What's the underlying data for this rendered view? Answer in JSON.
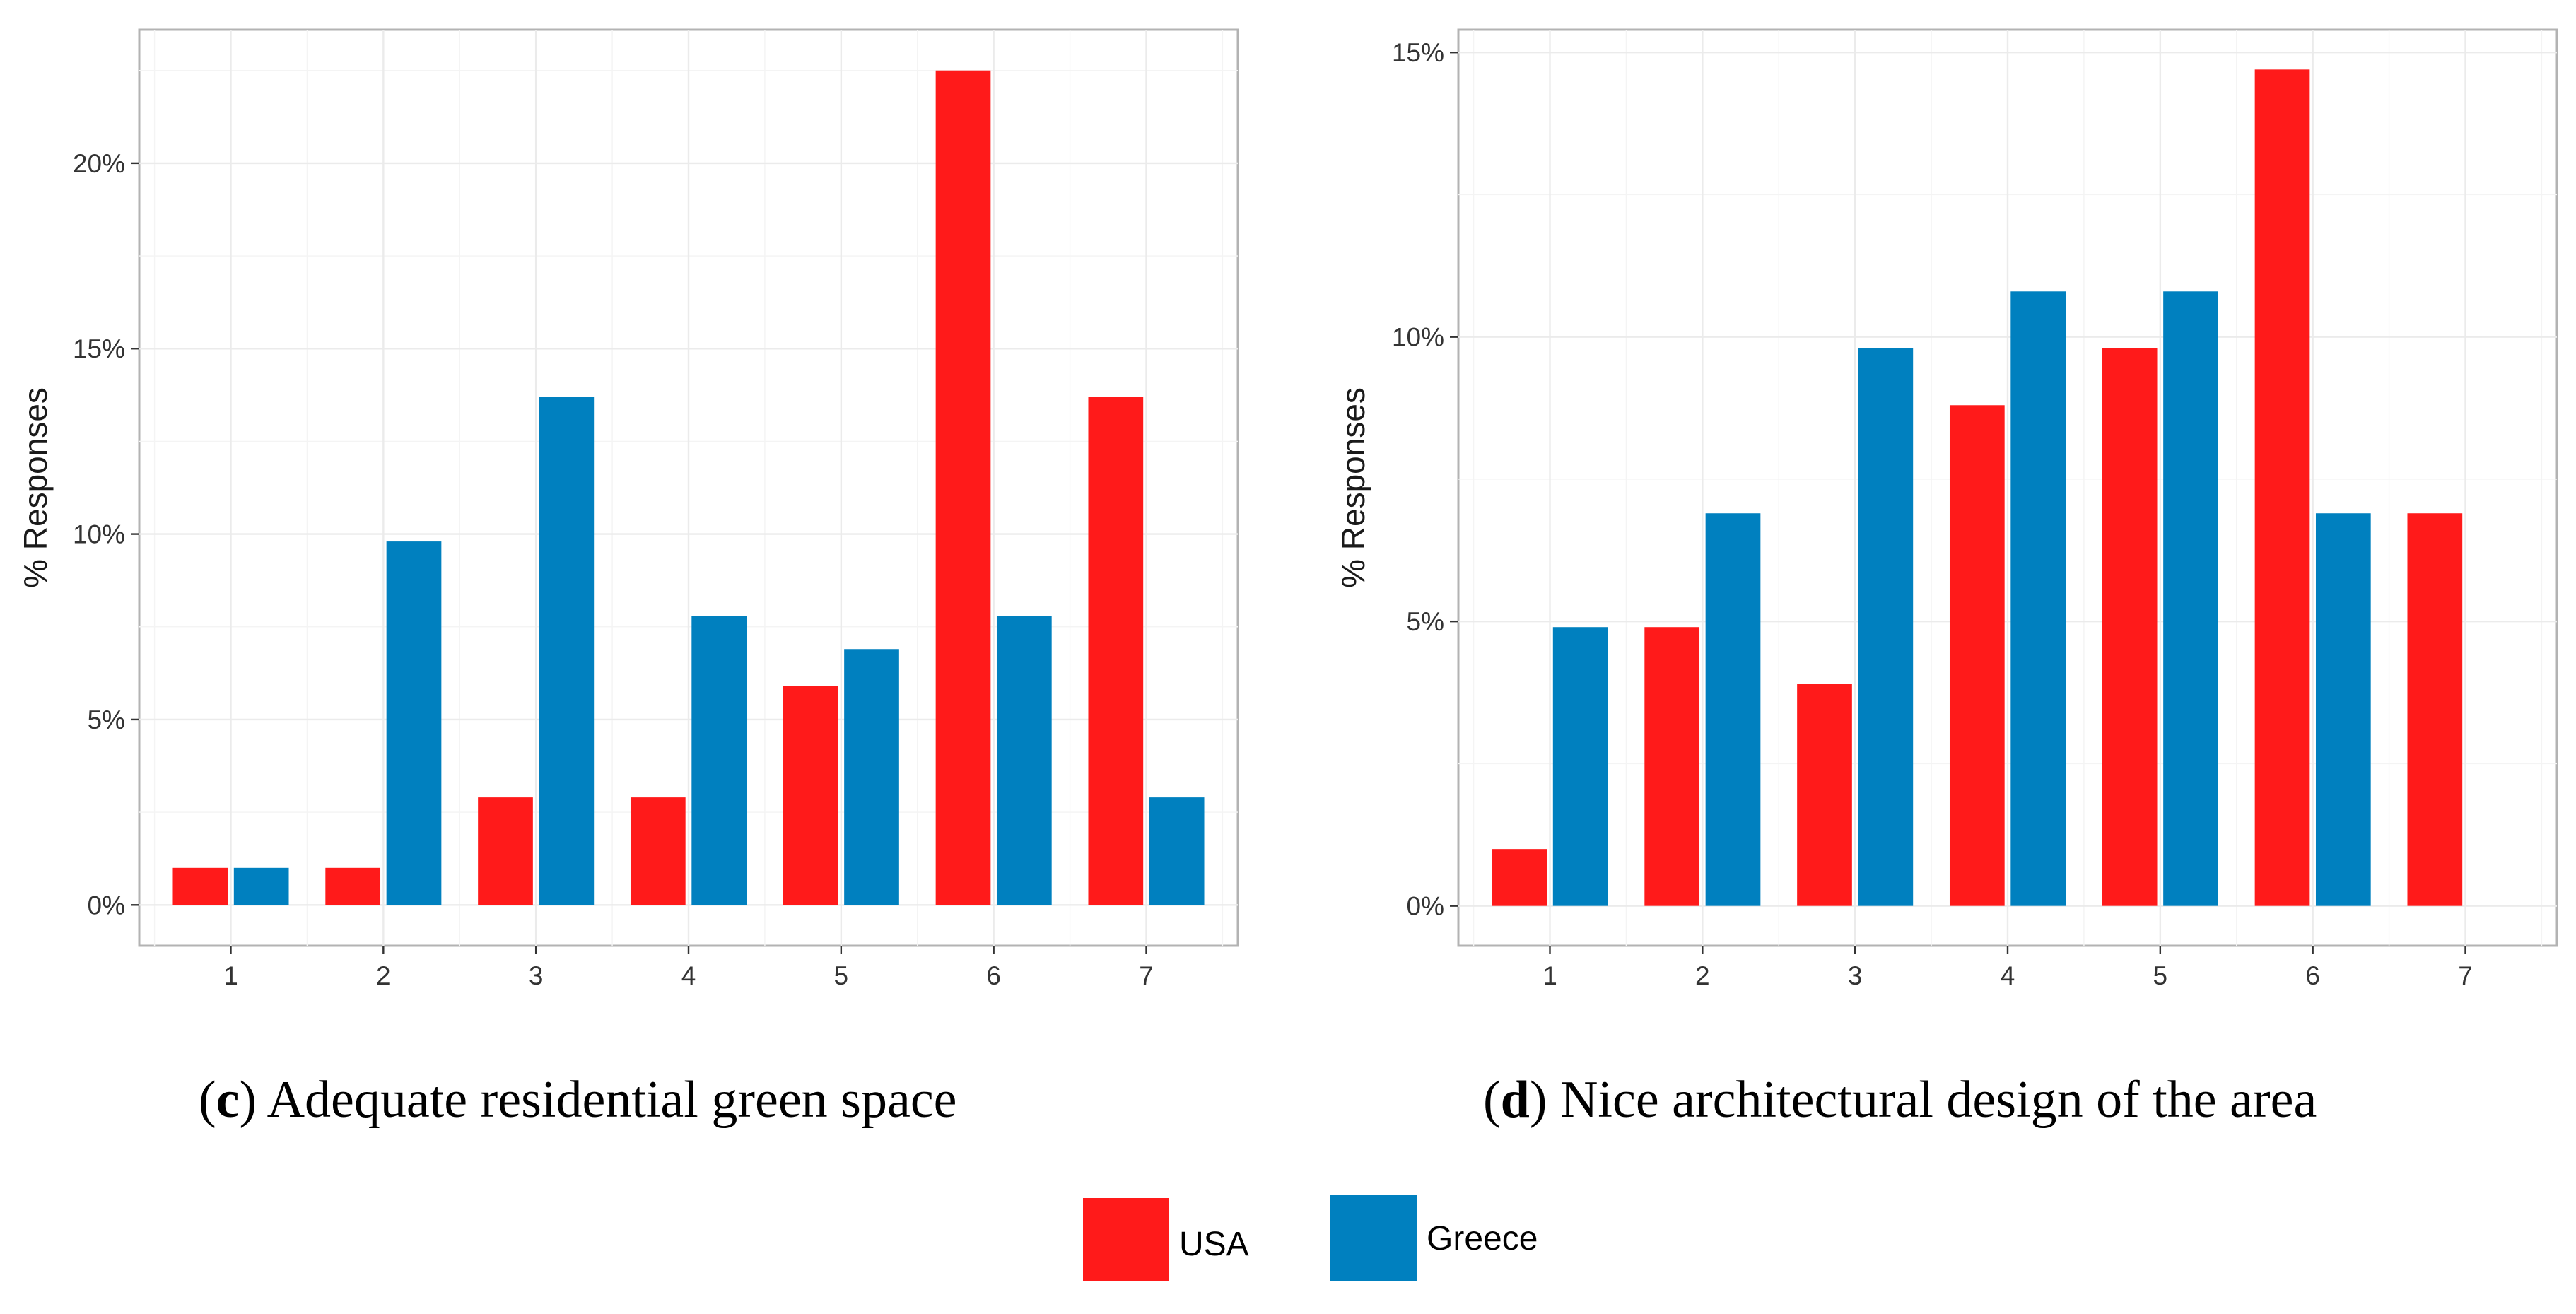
{
  "chart_data": [
    {
      "type": "bar",
      "panel": "c",
      "caption": {
        "open": "(",
        "letter": "c",
        "close": ")",
        "text": "Adequate residential green space"
      },
      "ylabel": "% Responses",
      "xlabel": "",
      "categories": [
        "1",
        "2",
        "3",
        "4",
        "5",
        "6",
        "7"
      ],
      "y_ticks": [
        0,
        5,
        10,
        15,
        20
      ],
      "y_tick_labels": [
        "0%",
        "5%",
        "10%",
        "15%",
        "20%"
      ],
      "ylim": [
        -1.1,
        23.6
      ],
      "grid": true,
      "series": [
        {
          "name": "USA",
          "values": [
            1.0,
            1.0,
            2.9,
            2.9,
            5.9,
            22.5,
            13.7
          ]
        },
        {
          "name": "Greece",
          "values": [
            1.0,
            9.8,
            13.7,
            7.8,
            6.9,
            7.8,
            2.9
          ]
        }
      ]
    },
    {
      "type": "bar",
      "panel": "d",
      "caption": {
        "open": "(",
        "letter": "d",
        "close": ")",
        "text": "Nice architectural design of the area"
      },
      "ylabel": "% Responses",
      "xlabel": "",
      "categories": [
        "1",
        "2",
        "3",
        "4",
        "5",
        "6",
        "7"
      ],
      "y_ticks": [
        0,
        5,
        10,
        15
      ],
      "y_tick_labels": [
        "0%",
        "5%",
        "10%",
        "15%"
      ],
      "ylim": [
        -0.7,
        15.4
      ],
      "grid": true,
      "series": [
        {
          "name": "USA",
          "values": [
            1.0,
            4.9,
            3.9,
            8.8,
            9.8,
            14.7,
            6.9
          ]
        },
        {
          "name": "Greece",
          "values": [
            4.9,
            6.9,
            9.8,
            10.8,
            10.8,
            6.9,
            0
          ]
        }
      ]
    }
  ],
  "legend": {
    "position": "bottom-center",
    "items": [
      {
        "label": "USA",
        "color": "#ff1a1a"
      },
      {
        "label": "Greece",
        "color": "#0080bf"
      }
    ]
  },
  "colors": {
    "USA": "#ff1a1a",
    "Greece": "#0080bf"
  }
}
